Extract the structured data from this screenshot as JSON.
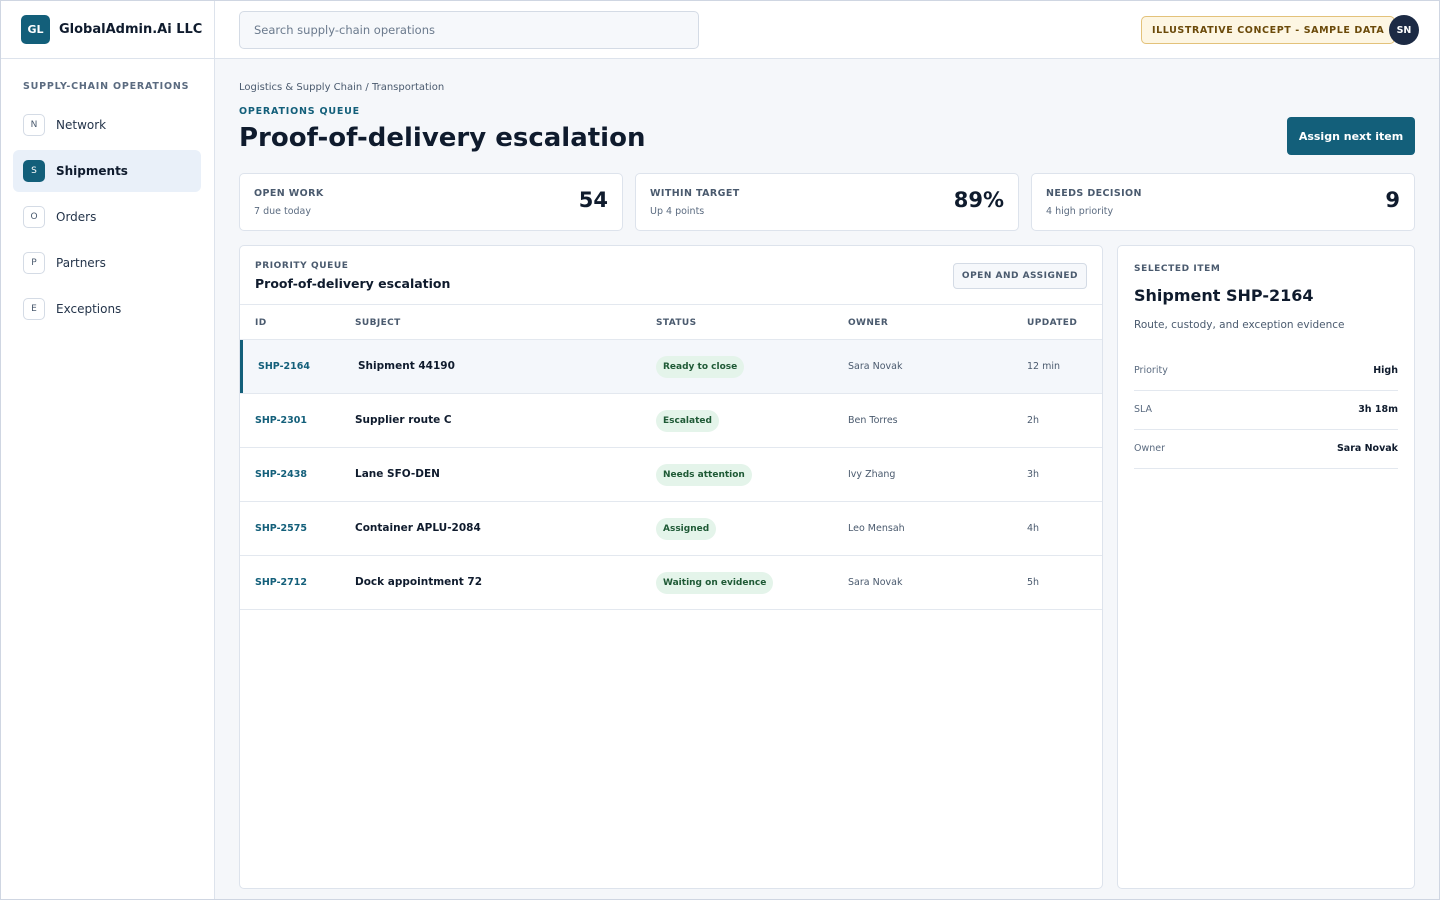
{
  "brand": {
    "logo": "GL",
    "name": "GlobalAdmin.Ai LLC"
  },
  "sidebar": {
    "heading": "SUPPLY-CHAIN OPERATIONS",
    "items": [
      {
        "badge": "N",
        "label": "Network"
      },
      {
        "badge": "S",
        "label": "Shipments",
        "active": true
      },
      {
        "badge": "O",
        "label": "Orders"
      },
      {
        "badge": "P",
        "label": "Partners"
      },
      {
        "badge": "E",
        "label": "Exceptions"
      }
    ]
  },
  "topbar": {
    "search_placeholder": "Search supply-chain operations",
    "concept_badge": "ILLUSTRATIVE CONCEPT - SAMPLE DATA",
    "avatar": "SN"
  },
  "header": {
    "breadcrumb": "Logistics & Supply Chain / Transportation",
    "eyebrow": "OPERATIONS QUEUE",
    "title": "Proof-of-delivery escalation",
    "primary_button": "Assign next item"
  },
  "metrics": [
    {
      "label": "OPEN WORK",
      "sub": "7 due today",
      "value": "54"
    },
    {
      "label": "WITHIN TARGET",
      "sub": "Up 4 points",
      "value": "89%"
    },
    {
      "label": "NEEDS DECISION",
      "sub": "4 high priority",
      "value": "9"
    }
  ],
  "queue": {
    "eyebrow": "PRIORITY QUEUE",
    "title": "Proof-of-delivery escalation",
    "filter": "OPEN AND ASSIGNED",
    "columns": {
      "id": "ID",
      "subject": "SUBJECT",
      "status": "STATUS",
      "owner": "OWNER",
      "updated": "UPDATED"
    },
    "rows": [
      {
        "id": "SHP-2164",
        "subject": "Shipment 44190",
        "status": "Ready to close",
        "owner": "Sara Novak",
        "updated": "12 min"
      },
      {
        "id": "SHP-2301",
        "subject": "Supplier route C",
        "status": "Escalated",
        "owner": "Ben Torres",
        "updated": "2h"
      },
      {
        "id": "SHP-2438",
        "subject": "Lane SFO-DEN",
        "status": "Needs attention",
        "owner": "Ivy Zhang",
        "updated": "3h"
      },
      {
        "id": "SHP-2575",
        "subject": "Container APLU-2084",
        "status": "Assigned",
        "owner": "Leo Mensah",
        "updated": "4h"
      },
      {
        "id": "SHP-2712",
        "subject": "Dock appointment 72",
        "status": "Waiting on evidence",
        "owner": "Sara Novak",
        "updated": "5h"
      }
    ]
  },
  "details": {
    "eyebrow": "SELECTED ITEM",
    "title": "Shipment SHP-2164",
    "description": "Route, custody, and exception evidence",
    "fields": [
      {
        "key": "Priority",
        "value": "High"
      },
      {
        "key": "SLA",
        "value": "3h 18m"
      },
      {
        "key": "Owner",
        "value": "Sara Novak"
      }
    ]
  },
  "colors": {
    "accent": "#135f7a",
    "status_bg": "#e4f4ea",
    "status_text": "#1f5a36",
    "concept_bg": "#fdf6e3"
  }
}
